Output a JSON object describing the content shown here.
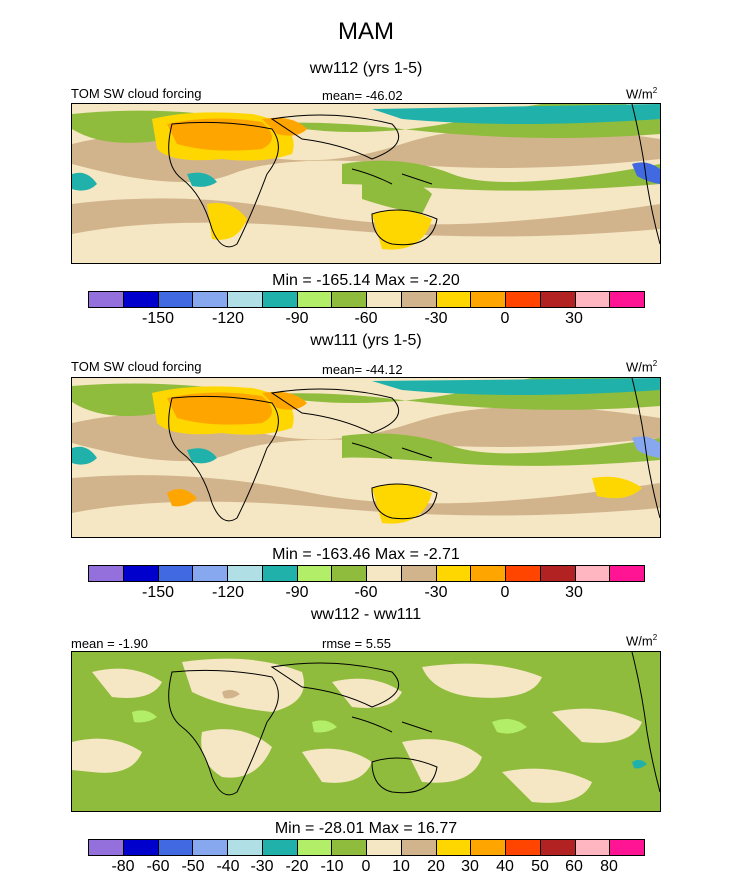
{
  "season": "MAM",
  "panels": [
    {
      "title": "ww112 (yrs 1-5)",
      "left_label": "TOM SW cloud forcing",
      "center_label": "mean= -46.02",
      "units": "W/m",
      "units_sup": "2",
      "stats": "Min = -165.14 Max =  -2.20",
      "map_description": "world map, Africa–Pacific, shortwave cloud forcing field"
    },
    {
      "title": "ww111 (yrs 1-5)",
      "left_label": "TOM SW cloud forcing",
      "center_label": "mean= -44.12",
      "units": "W/m",
      "units_sup": "2",
      "stats": "Min = -163.46 Max =  -2.71"
    },
    {
      "title": "ww112 - ww111",
      "left_label": "mean =  -1.90",
      "center_label": "rmse =   5.55",
      "units": "W/m",
      "units_sup": "2",
      "stats": "Min = -28.01 Max =  16.77"
    }
  ],
  "colorbar_colors": [
    "#9370db",
    "#0000cd",
    "#4169e1",
    "#87a8ee",
    "#b0e0e6",
    "#20b2aa",
    "#b3ee68",
    "#8fbc3c",
    "#f5e6c4",
    "#d2b48c",
    "#ffd700",
    "#ffa500",
    "#ff4500",
    "#b22222",
    "#ffb6c1",
    "#ff1493"
  ],
  "colorbar_field_labels": [
    "-150",
    "-120",
    "-90",
    "-60",
    "-30",
    "0",
    "30"
  ],
  "colorbar_diff_labels": [
    "-80",
    "-60",
    "-50",
    "-40",
    "-30",
    "-20",
    "-10",
    "0",
    "10",
    "20",
    "30",
    "40",
    "50",
    "60",
    "80"
  ]
}
